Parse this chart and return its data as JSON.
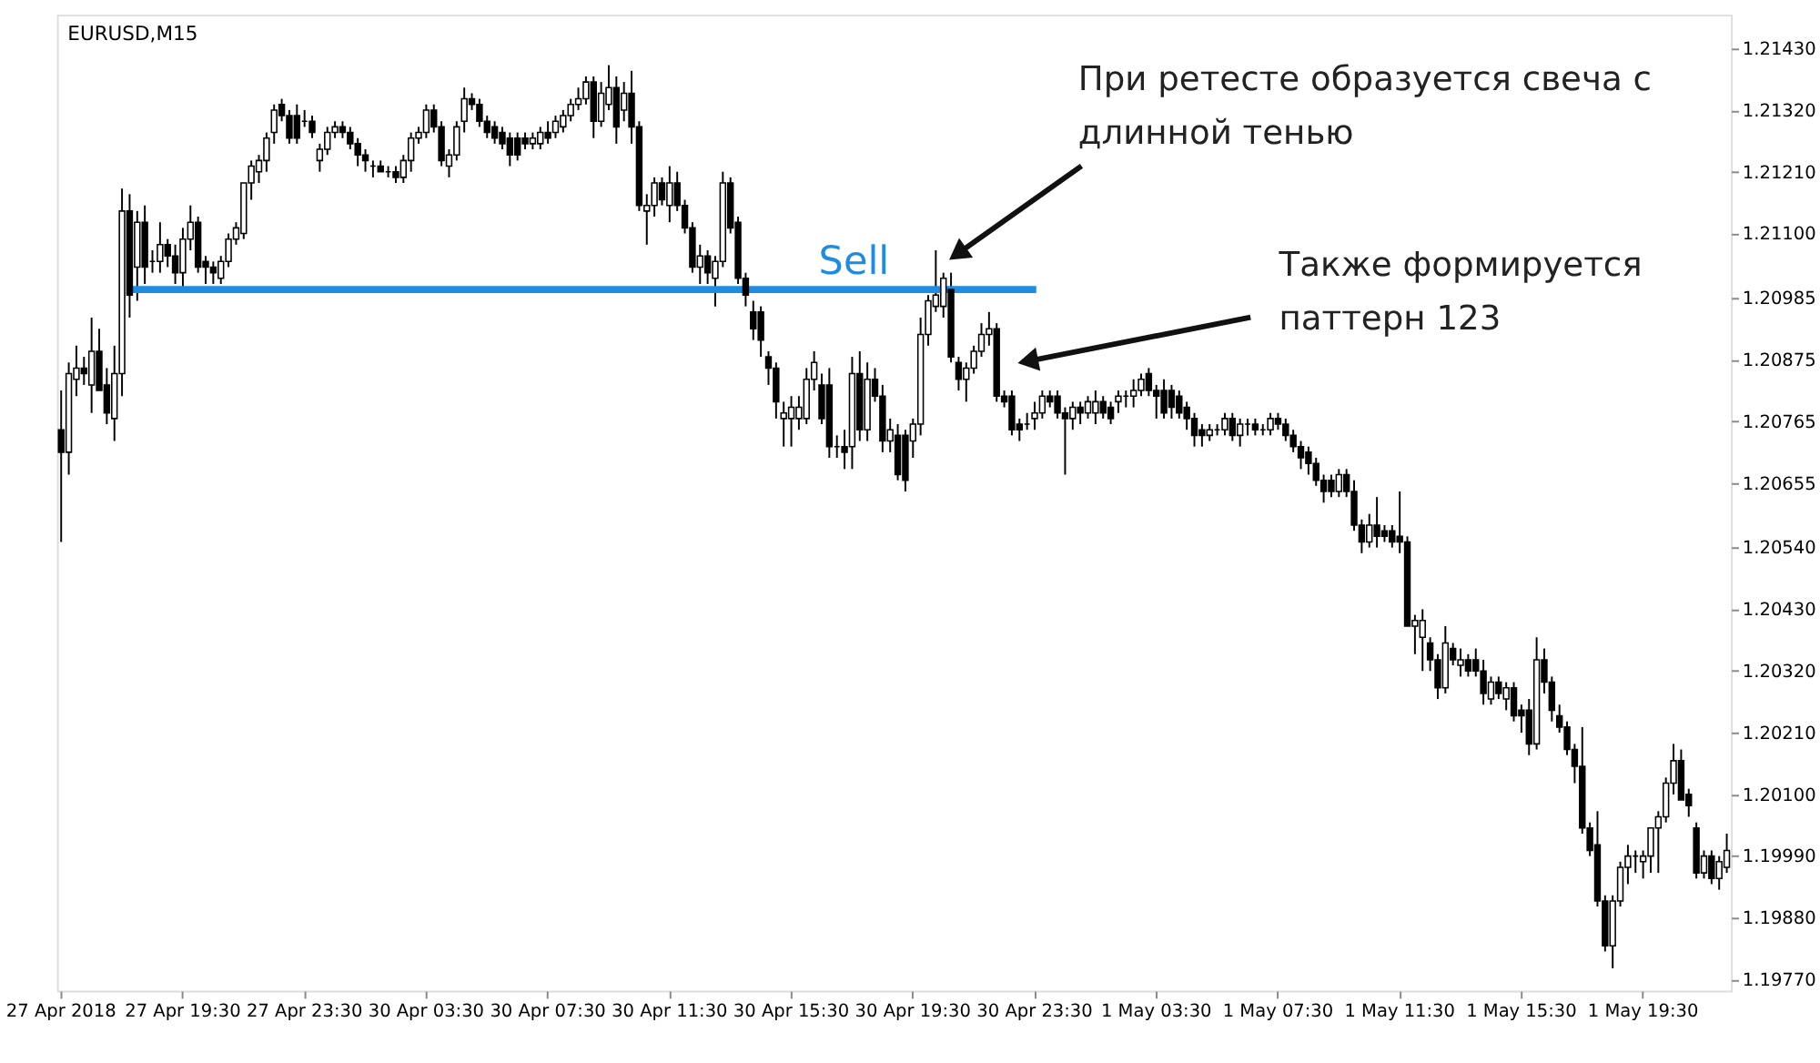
{
  "chart_data": {
    "type": "candlestick",
    "title": "EURUSD,M15",
    "categories": [
      "27 Apr 2018",
      null,
      null,
      null,
      null,
      null,
      null,
      null,
      null,
      null,
      null,
      null,
      null,
      null,
      null,
      null,
      "27 Apr 19:30",
      null,
      null,
      null,
      null,
      null,
      null,
      null,
      null,
      null,
      null,
      null,
      null,
      null,
      null,
      null,
      "27 Apr 23:30",
      null,
      null,
      null,
      null,
      null,
      null,
      null,
      null,
      null,
      null,
      null,
      null,
      null,
      null,
      null,
      "30 Apr 03:30",
      null,
      null,
      null,
      null,
      null,
      null,
      null,
      null,
      null,
      null,
      null,
      null,
      null,
      null,
      null,
      "30 Apr 07:30",
      null,
      null,
      null,
      null,
      null,
      null,
      null,
      null,
      null,
      null,
      null,
      null,
      null,
      null,
      null,
      "30 Apr 11:30",
      null,
      null,
      null,
      null,
      null,
      null,
      null,
      null,
      null,
      null,
      null,
      null,
      null,
      null,
      null,
      "30 Apr 15:30",
      null,
      null,
      null,
      null,
      null,
      null,
      null,
      null,
      null,
      null,
      null,
      null,
      null,
      null,
      null,
      "30 Apr 19:30",
      null,
      null,
      null,
      null,
      null,
      null,
      null,
      null,
      null,
      null,
      null,
      null,
      null,
      null,
      null,
      "30 Apr 23:30",
      null,
      null,
      null,
      null,
      null,
      null,
      null,
      null,
      null,
      null,
      null,
      null,
      null,
      null,
      null,
      "1 May 03:30",
      null,
      null,
      null,
      null,
      null,
      null,
      null,
      null,
      null,
      null,
      null,
      null,
      null,
      null,
      null,
      "1 May 07:30",
      null,
      null,
      null,
      null,
      null,
      null,
      null,
      null,
      null,
      null,
      null,
      null,
      null,
      null,
      null,
      "1 May 11:30",
      null,
      null,
      null,
      null,
      null,
      null,
      null,
      null,
      null,
      null,
      null,
      null,
      null,
      null,
      null,
      "1 May 15:30",
      null,
      null,
      null,
      null,
      null,
      null,
      null,
      null,
      null,
      null,
      null,
      null,
      null,
      null,
      null,
      "1 May 19:30",
      null,
      null,
      null,
      null,
      null,
      null,
      null,
      null,
      null,
      null,
      null
    ],
    "ohlc": [
      [
        1.2075,
        1.2082,
        1.2055,
        1.2071
      ],
      [
        1.2071,
        1.2087,
        1.2067,
        1.2085
      ],
      [
        1.2084,
        1.209,
        1.2081,
        1.2086
      ],
      [
        1.2086,
        1.2088,
        1.2083,
        1.2085
      ],
      [
        1.2083,
        1.2095,
        1.2078,
        1.2089
      ],
      [
        1.2089,
        1.2093,
        1.2082,
        1.2082
      ],
      [
        1.2083,
        1.2086,
        1.2076,
        1.2078
      ],
      [
        1.2077,
        1.209,
        1.2073,
        1.2085
      ],
      [
        1.2085,
        1.2118,
        1.2081,
        1.2114
      ],
      [
        1.2114,
        1.2117,
        1.2095,
        1.2099
      ],
      [
        1.2104,
        1.2114,
        1.2098,
        1.2112
      ],
      [
        1.2112,
        1.2115,
        1.2101,
        1.2104
      ],
      [
        1.2105,
        1.2107,
        1.2103,
        1.2105
      ],
      [
        1.2105,
        1.2112,
        1.2103,
        1.2108
      ],
      [
        1.2108,
        1.2109,
        1.2104,
        1.2106
      ],
      [
        1.2106,
        1.2108,
        1.2101,
        1.2103
      ],
      [
        1.2103,
        1.2111,
        1.21,
        1.2109
      ],
      [
        1.2109,
        1.2115,
        1.2107,
        1.2112
      ],
      [
        1.2112,
        1.2113,
        1.2103,
        1.2104
      ],
      [
        1.2105,
        1.2106,
        1.2101,
        1.2104
      ],
      [
        1.2104,
        1.2105,
        1.2101,
        1.2103
      ],
      [
        1.2102,
        1.2106,
        1.2101,
        1.2105
      ],
      [
        1.2105,
        1.211,
        1.2104,
        1.2109
      ],
      [
        1.2109,
        1.2112,
        1.2108,
        1.2111
      ],
      [
        1.211,
        1.2119,
        1.2109,
        1.2119
      ],
      [
        1.2119,
        1.2123,
        1.2116,
        1.2122
      ],
      [
        1.2121,
        1.2124,
        1.2119,
        1.2123
      ],
      [
        1.2123,
        1.2128,
        1.2121,
        1.2127
      ],
      [
        1.2128,
        1.2133,
        1.2126,
        1.2132
      ],
      [
        1.2133,
        1.2134,
        1.213,
        1.2131
      ],
      [
        1.2131,
        1.2132,
        1.2126,
        1.2127
      ],
      [
        1.2131,
        1.2133,
        1.2126,
        1.2127
      ],
      [
        1.213,
        1.2132,
        1.2129,
        1.213
      ],
      [
        1.213,
        1.2131,
        1.2127,
        1.2128
      ],
      [
        1.2123,
        1.2126,
        1.2121,
        1.2125
      ],
      [
        1.2125,
        1.2129,
        1.2124,
        1.2128
      ],
      [
        1.2128,
        1.213,
        1.2127,
        1.2129
      ],
      [
        1.2129,
        1.213,
        1.2127,
        1.2128
      ],
      [
        1.2128,
        1.2129,
        1.2125,
        1.2126
      ],
      [
        1.2126,
        1.2127,
        1.2122,
        1.2124
      ],
      [
        1.2124,
        1.2125,
        1.2121,
        1.2123
      ],
      [
        1.2122,
        1.2123,
        1.212,
        1.2122
      ],
      [
        1.2122,
        1.2123,
        1.2121,
        1.2121
      ],
      [
        1.2121,
        1.2122,
        1.212,
        1.2121
      ],
      [
        1.2121,
        1.2122,
        1.2119,
        1.212
      ],
      [
        1.212,
        1.2124,
        1.2119,
        1.2123
      ],
      [
        1.2123,
        1.2128,
        1.2121,
        1.2127
      ],
      [
        1.2127,
        1.2129,
        1.2126,
        1.2128
      ],
      [
        1.2128,
        1.2133,
        1.2127,
        1.2132
      ],
      [
        1.2132,
        1.2133,
        1.2128,
        1.2129
      ],
      [
        1.2129,
        1.213,
        1.2122,
        1.2123
      ],
      [
        1.2122,
        1.2125,
        1.212,
        1.2124
      ],
      [
        1.2124,
        1.213,
        1.2123,
        1.2129
      ],
      [
        1.213,
        1.2136,
        1.2128,
        1.2134
      ],
      [
        1.2134,
        1.2135,
        1.2132,
        1.2133
      ],
      [
        1.2133,
        1.2134,
        1.2129,
        1.213
      ],
      [
        1.213,
        1.2131,
        1.2127,
        1.2128
      ],
      [
        1.2129,
        1.213,
        1.2126,
        1.2127
      ],
      [
        1.2128,
        1.2129,
        1.2125,
        1.2126
      ],
      [
        1.2127,
        1.2128,
        1.2122,
        1.2124
      ],
      [
        1.2127,
        1.2128,
        1.2123,
        1.2124
      ],
      [
        1.2127,
        1.2128,
        1.2125,
        1.2126
      ],
      [
        1.2126,
        1.2128,
        1.2125,
        1.2127
      ],
      [
        1.2126,
        1.2129,
        1.2125,
        1.2128
      ],
      [
        1.2128,
        1.213,
        1.2126,
        1.2127
      ],
      [
        1.2128,
        1.2131,
        1.2127,
        1.213
      ],
      [
        1.2129,
        1.2132,
        1.2128,
        1.2131
      ],
      [
        1.2131,
        1.2134,
        1.213,
        1.2133
      ],
      [
        1.2133,
        1.2136,
        1.2132,
        1.2134
      ],
      [
        1.2134,
        1.2138,
        1.2133,
        1.2137
      ],
      [
        1.2137,
        1.2138,
        1.2127,
        1.213
      ],
      [
        1.213,
        1.2137,
        1.2129,
        1.2135
      ],
      [
        1.2133,
        1.214,
        1.2132,
        1.2136
      ],
      [
        1.2136,
        1.2138,
        1.2126,
        1.2129
      ],
      [
        1.2132,
        1.2137,
        1.213,
        1.2135
      ],
      [
        1.2135,
        1.2139,
        1.2126,
        1.2129
      ],
      [
        1.2129,
        1.213,
        1.2114,
        1.2115
      ],
      [
        1.2114,
        1.2117,
        1.2108,
        1.2115
      ],
      [
        1.2115,
        1.212,
        1.2113,
        1.2119
      ],
      [
        1.2119,
        1.212,
        1.2115,
        1.2116
      ],
      [
        1.2115,
        1.2122,
        1.2112,
        1.2119
      ],
      [
        1.2119,
        1.2121,
        1.2114,
        1.2115
      ],
      [
        1.2115,
        1.2116,
        1.211,
        1.2111
      ],
      [
        1.2111,
        1.2112,
        1.2103,
        1.2104
      ],
      [
        1.2104,
        1.2108,
        1.2101,
        1.2106
      ],
      [
        1.2106,
        1.2107,
        1.2101,
        1.2103
      ],
      [
        1.2102,
        1.2106,
        1.2097,
        1.2105
      ],
      [
        1.2105,
        1.2121,
        1.2104,
        1.2119
      ],
      [
        1.2119,
        1.212,
        1.211,
        1.2111
      ],
      [
        1.2112,
        1.2113,
        1.2101,
        1.2102
      ],
      [
        1.2102,
        1.2103,
        1.2097,
        1.2099
      ],
      [
        1.2096,
        1.2098,
        1.2091,
        1.2093
      ],
      [
        1.2096,
        1.2097,
        1.2088,
        1.2091
      ],
      [
        1.2088,
        1.2089,
        1.2083,
        1.2086
      ],
      [
        1.2086,
        1.2087,
        1.2077,
        1.208
      ],
      [
        1.2077,
        1.208,
        1.2072,
        1.2078
      ],
      [
        1.2077,
        1.2081,
        1.2072,
        1.2079
      ],
      [
        1.2077,
        1.2081,
        1.2075,
        1.2079
      ],
      [
        1.2077,
        1.2086,
        1.2076,
        1.2084
      ],
      [
        1.2084,
        1.2089,
        1.2082,
        1.2087
      ],
      [
        1.2083,
        1.2085,
        1.2076,
        1.2077
      ],
      [
        1.2083,
        1.2086,
        1.207,
        1.2072
      ],
      [
        1.2072,
        1.2074,
        1.207,
        1.2072
      ],
      [
        1.2072,
        1.2075,
        1.2068,
        1.2071
      ],
      [
        1.2072,
        1.2088,
        1.2068,
        1.2085
      ],
      [
        1.2085,
        1.2089,
        1.2073,
        1.2075
      ],
      [
        1.2075,
        1.2087,
        1.2073,
        1.2084
      ],
      [
        1.2084,
        1.2086,
        1.208,
        1.2081
      ],
      [
        1.2081,
        1.2083,
        1.2071,
        1.2073
      ],
      [
        1.2073,
        1.2077,
        1.2071,
        1.2075
      ],
      [
        1.2074,
        1.2076,
        1.2066,
        1.2067
      ],
      [
        1.2074,
        1.2075,
        1.2064,
        1.2066
      ],
      [
        1.2073,
        1.2077,
        1.207,
        1.2076
      ],
      [
        1.2076,
        1.2095,
        1.2074,
        1.2092
      ],
      [
        1.2092,
        1.2099,
        1.209,
        1.2098
      ],
      [
        1.2097,
        1.2107,
        1.2096,
        1.2099
      ],
      [
        1.2097,
        1.2103,
        1.2095,
        1.2102
      ],
      [
        1.21,
        1.2103,
        1.2087,
        1.2088
      ],
      [
        1.2087,
        1.2088,
        1.2082,
        1.2084
      ],
      [
        1.2084,
        1.2087,
        1.208,
        1.2086
      ],
      [
        1.2086,
        1.209,
        1.2085,
        1.2089
      ],
      [
        1.2089,
        1.2094,
        1.2088,
        1.2092
      ],
      [
        1.2092,
        1.2096,
        1.209,
        1.2093
      ],
      [
        1.2093,
        1.2094,
        1.208,
        1.2081
      ],
      [
        1.2081,
        1.2082,
        1.2079,
        1.208
      ],
      [
        1.2081,
        1.2082,
        1.2074,
        1.2075
      ],
      [
        1.2076,
        1.2077,
        1.2073,
        1.2075
      ],
      [
        1.2076,
        1.2078,
        1.2075,
        1.2076
      ],
      [
        1.2077,
        1.208,
        1.2075,
        1.2078
      ],
      [
        1.2078,
        1.2082,
        1.2077,
        1.2081
      ],
      [
        1.2081,
        1.2082,
        1.2079,
        1.208
      ],
      [
        1.2081,
        1.2082,
        1.2077,
        1.2078
      ],
      [
        1.2078,
        1.2079,
        1.2067,
        1.2077
      ],
      [
        1.2077,
        1.208,
        1.2075,
        1.2079
      ],
      [
        1.2079,
        1.208,
        1.2076,
        1.2078
      ],
      [
        1.2078,
        1.2081,
        1.2077,
        1.208
      ],
      [
        1.2078,
        1.2082,
        1.2076,
        1.208
      ],
      [
        1.208,
        1.2081,
        1.2077,
        1.2078
      ],
      [
        1.2079,
        1.208,
        1.2076,
        1.2077
      ],
      [
        1.208,
        1.2082,
        1.2078,
        1.2081
      ],
      [
        1.2081,
        1.2082,
        1.2079,
        1.2081
      ],
      [
        1.2081,
        1.2084,
        1.2079,
        1.2082
      ],
      [
        1.2082,
        1.2085,
        1.2081,
        1.2084
      ],
      [
        1.2085,
        1.2086,
        1.2081,
        1.2082
      ],
      [
        1.2082,
        1.2083,
        1.2077,
        1.2081
      ],
      [
        1.2082,
        1.2084,
        1.2077,
        1.2078
      ],
      [
        1.2082,
        1.2083,
        1.2077,
        1.2079
      ],
      [
        1.2081,
        1.2082,
        1.2077,
        1.2078
      ],
      [
        1.2079,
        1.208,
        1.2075,
        1.2077
      ],
      [
        1.2077,
        1.2078,
        1.2072,
        1.2074
      ],
      [
        1.2075,
        1.2076,
        1.2072,
        1.2074
      ],
      [
        1.2074,
        1.2076,
        1.2073,
        1.2075
      ],
      [
        1.2075,
        1.2076,
        1.2074,
        1.2075
      ],
      [
        1.2075,
        1.2078,
        1.2074,
        1.2077
      ],
      [
        1.2077,
        1.2078,
        1.2073,
        1.2074
      ],
      [
        1.2074,
        1.2077,
        1.2072,
        1.2076
      ],
      [
        1.2076,
        1.2077,
        1.2074,
        1.2076
      ],
      [
        1.2076,
        1.2077,
        1.2074,
        1.2075
      ],
      [
        1.2075,
        1.2076,
        1.2074,
        1.2075
      ],
      [
        1.2075,
        1.2078,
        1.2074,
        1.2077
      ],
      [
        1.2077,
        1.2078,
        1.2075,
        1.2076
      ],
      [
        1.2076,
        1.2077,
        1.2073,
        1.2074
      ],
      [
        1.2074,
        1.2075,
        1.2071,
        1.2072
      ],
      [
        1.2072,
        1.2073,
        1.2068,
        1.207
      ],
      [
        1.2071,
        1.2072,
        1.2067,
        1.2069
      ],
      [
        1.2069,
        1.207,
        1.2065,
        1.2066
      ],
      [
        1.2066,
        1.2067,
        1.2062,
        1.2064
      ],
      [
        1.2066,
        1.2067,
        1.2063,
        1.2064
      ],
      [
        1.2064,
        1.2068,
        1.2063,
        1.2067
      ],
      [
        1.2067,
        1.2068,
        1.2063,
        1.2064
      ],
      [
        1.2064,
        1.2066,
        1.2057,
        1.2058
      ],
      [
        1.2058,
        1.2059,
        1.2053,
        1.2055
      ],
      [
        1.2055,
        1.206,
        1.2054,
        1.2058
      ],
      [
        1.2058,
        1.2063,
        1.2054,
        1.2056
      ],
      [
        1.2057,
        1.2058,
        1.2055,
        1.2056
      ],
      [
        1.2057,
        1.2058,
        1.2054,
        1.2055
      ],
      [
        1.2056,
        1.2064,
        1.2053,
        1.2055
      ],
      [
        1.2055,
        1.2056,
        1.204,
        1.204
      ],
      [
        1.204,
        1.2042,
        1.2035,
        1.2041
      ],
      [
        1.2038,
        1.2043,
        1.2032,
        1.2041
      ],
      [
        1.2037,
        1.2038,
        1.2032,
        1.2034
      ],
      [
        1.2034,
        1.2035,
        1.2027,
        1.2029
      ],
      [
        1.2029,
        1.204,
        1.2028,
        1.2037
      ],
      [
        1.2036,
        1.2037,
        1.2033,
        1.2034
      ],
      [
        1.2033,
        1.2036,
        1.2031,
        1.2034
      ],
      [
        1.2034,
        1.2035,
        1.2031,
        1.2032
      ],
      [
        1.2034,
        1.2036,
        1.2031,
        1.2032
      ],
      [
        1.2032,
        1.2034,
        1.2026,
        1.2028
      ],
      [
        1.2027,
        1.2031,
        1.2026,
        1.203
      ],
      [
        1.203,
        1.2031,
        1.2027,
        1.2028
      ],
      [
        1.2027,
        1.203,
        1.2025,
        1.2029
      ],
      [
        1.2029,
        1.203,
        1.2023,
        1.2024
      ],
      [
        1.2025,
        1.2026,
        1.2021,
        1.2024
      ],
      [
        1.2025,
        1.2027,
        1.2017,
        1.2019
      ],
      [
        1.2019,
        1.2038,
        1.2018,
        1.2034
      ],
      [
        1.2034,
        1.2036,
        1.2028,
        1.203
      ],
      [
        1.203,
        1.2031,
        1.2023,
        1.2025
      ],
      [
        1.2024,
        1.2026,
        1.2021,
        1.2022
      ],
      [
        1.2022,
        1.2023,
        1.2017,
        1.2018
      ],
      [
        1.2018,
        1.2019,
        1.2012,
        1.2015
      ],
      [
        1.2015,
        1.2022,
        1.2003,
        1.2004
      ],
      [
        1.2004,
        1.2005,
        1.1999,
        1.2
      ],
      [
        1.2001,
        1.2007,
        1.199,
        1.1991
      ],
      [
        1.1991,
        1.1992,
        1.1982,
        1.1983
      ],
      [
        1.1983,
        1.1992,
        1.1979,
        1.1991
      ],
      [
        1.1991,
        1.1998,
        1.199,
        1.1997
      ],
      [
        1.1997,
        1.2001,
        1.1994,
        1.1999
      ],
      [
        1.1999,
        1.2,
        1.1996,
        1.1999
      ],
      [
        1.1998,
        1.2,
        1.1995,
        1.1999
      ],
      [
        1.1999,
        1.2004,
        1.1996,
        1.2004
      ],
      [
        1.2004,
        1.2007,
        1.1996,
        1.2006
      ],
      [
        1.2006,
        1.2013,
        1.2005,
        1.2012
      ],
      [
        1.2012,
        1.2019,
        1.201,
        1.2016
      ],
      [
        1.2016,
        1.2018,
        1.2009,
        1.2009
      ],
      [
        1.201,
        1.2011,
        1.2006,
        1.2008
      ],
      [
        1.2004,
        1.2005,
        1.1995,
        1.1996
      ],
      [
        1.1996,
        1.2,
        1.1995,
        1.1999
      ],
      [
        1.1999,
        1.2,
        1.1994,
        1.1995
      ],
      [
        1.1995,
        1.1999,
        1.1993,
        1.1998
      ],
      [
        1.1997,
        1.2003,
        1.1996,
        1.2
      ]
    ],
    "ylim": [
      1.1975,
      1.2149
    ],
    "yticks": [
      {
        "value": 1.2143,
        "label": "1.21430"
      },
      {
        "value": 1.2132,
        "label": "1.21320"
      },
      {
        "value": 1.2121,
        "label": "1.21210"
      },
      {
        "value": 1.211,
        "label": "1.21100"
      },
      {
        "value": 1.20985,
        "label": "1.20985"
      },
      {
        "value": 1.20875,
        "label": "1.20875"
      },
      {
        "value": 1.20765,
        "label": "1.20765"
      },
      {
        "value": 1.20655,
        "label": "1.20655"
      },
      {
        "value": 1.2054,
        "label": "1.20540"
      },
      {
        "value": 1.2043,
        "label": "1.20430"
      },
      {
        "value": 1.2032,
        "label": "1.20320"
      },
      {
        "value": 1.2021,
        "label": "1.20210"
      },
      {
        "value": 1.201,
        "label": "1.20100"
      },
      {
        "value": 1.1999,
        "label": "1.19990"
      },
      {
        "value": 1.1988,
        "label": "1.19880"
      },
      {
        "value": 1.1977,
        "label": "1.19770"
      }
    ],
    "ref_lines": [
      {
        "axis": "y",
        "value": 1.21,
        "label": "Sell",
        "color": "#1e8ce0"
      }
    ],
    "annotations": [
      "При ретесте образуется свеча с\nдлинной тенью",
      "Также формируется\nпаттерн 123"
    ],
    "grid": false
  }
}
